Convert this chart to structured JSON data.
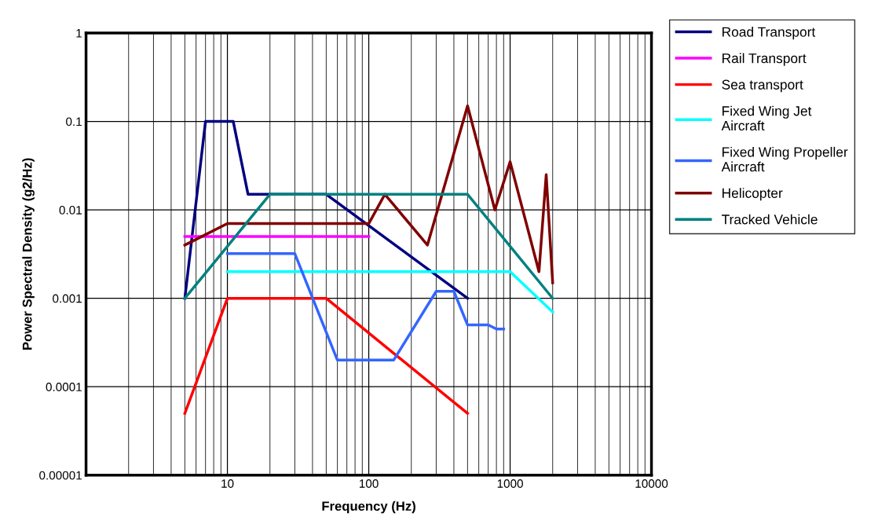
{
  "chart_data": {
    "type": "line",
    "xlabel": "Frequency (Hz)",
    "ylabel": "Power Spectral Density (g2/Hz)",
    "log": "xy",
    "grid": true,
    "legend": "right",
    "line_style": "solid",
    "marker": "none",
    "xlim": [
      1,
      10000
    ],
    "xticks": [
      10,
      100,
      1000,
      10000
    ],
    "ylim": [
      1e-05,
      1
    ],
    "yticks": [
      {
        "value": 1e-05,
        "label": "0.00001"
      },
      0.0001,
      0.001,
      0.01,
      0.1,
      1
    ],
    "series": [
      {
        "name": "Road Transport",
        "color": "#000080",
        "x": [
          5,
          7,
          11,
          14,
          50,
          500
        ],
        "values": [
          0.001,
          0.1,
          0.1,
          0.015,
          0.015,
          0.001
        ]
      },
      {
        "name": "Rail Transport",
        "color": "#ff00ff",
        "x": [
          5,
          100
        ],
        "values": [
          0.005,
          0.005
        ]
      },
      {
        "name": "Sea transport",
        "color": "#ff0000",
        "x": [
          5,
          10,
          50,
          500
        ],
        "values": [
          5e-05,
          0.001,
          0.001,
          5e-05
        ]
      },
      {
        "name": "Fixed Wing Jet\nAircraft",
        "color": "#00ffff",
        "x": [
          10,
          1000,
          2000
        ],
        "values": [
          0.002,
          0.002,
          0.0007
        ]
      },
      {
        "name": "Fixed Wing Propeller\nAircraft",
        "color": "#3366ff",
        "x": [
          10,
          30,
          60,
          150,
          300,
          400,
          500,
          700,
          800,
          900
        ],
        "values": [
          0.0032,
          0.0032,
          0.0002,
          0.0002,
          0.0012,
          0.0012,
          0.0005,
          0.0005,
          0.00045,
          0.00045
        ]
      },
      {
        "name": "Helicopter",
        "color": "#800000",
        "x": [
          5,
          10,
          100,
          130,
          260,
          500,
          780,
          1000,
          1600,
          1800,
          2000
        ],
        "values": [
          0.004,
          0.007,
          0.007,
          0.015,
          0.004,
          0.15,
          0.01,
          0.035,
          0.002,
          0.025,
          0.0015
        ]
      },
      {
        "name": "Tracked Vehicle",
        "color": "#008080",
        "x": [
          5,
          20,
          500,
          2000
        ],
        "values": [
          0.001,
          0.015,
          0.015,
          0.001
        ]
      }
    ]
  }
}
